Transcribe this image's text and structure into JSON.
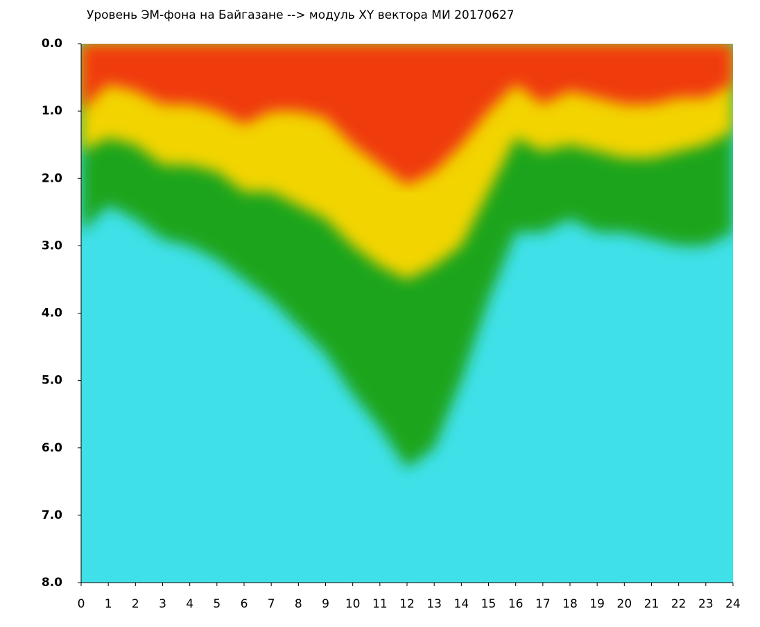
{
  "chart_data": {
    "type": "area",
    "title": "Уровень ЭМ-фона на Байгазане  --> модуль XY вектора МИ  20170627",
    "x": [
      0,
      1,
      2,
      3,
      4,
      5,
      6,
      7,
      8,
      9,
      10,
      11,
      12,
      13,
      14,
      15,
      16,
      17,
      18,
      19,
      20,
      21,
      22,
      23,
      24
    ],
    "series": [
      {
        "color": "#1fa51f",
        "values": [
          2.8,
          2.4,
          2.6,
          2.9,
          3.0,
          3.2,
          3.5,
          3.8,
          4.2,
          4.6,
          5.2,
          5.7,
          6.3,
          6.0,
          5.0,
          3.8,
          2.8,
          2.8,
          2.6,
          2.8,
          2.8,
          2.9,
          3.0,
          3.0,
          2.8
        ]
      },
      {
        "color": "#f2d400",
        "values": [
          1.6,
          1.4,
          1.5,
          1.8,
          1.8,
          1.9,
          2.2,
          2.2,
          2.4,
          2.6,
          3.0,
          3.3,
          3.5,
          3.3,
          3.0,
          2.2,
          1.4,
          1.6,
          1.5,
          1.6,
          1.7,
          1.7,
          1.6,
          1.5,
          1.3
        ]
      },
      {
        "color": "#f03a10",
        "values": [
          1.0,
          0.6,
          0.7,
          0.9,
          0.9,
          1.0,
          1.2,
          1.0,
          1.0,
          1.1,
          1.5,
          1.8,
          2.1,
          1.9,
          1.5,
          1.0,
          0.6,
          0.9,
          0.7,
          0.8,
          0.9,
          0.9,
          0.8,
          0.8,
          0.6
        ]
      }
    ],
    "background_color": "#3fe0e8",
    "xlim": [
      0,
      24
    ],
    "xticks": [
      0,
      1,
      2,
      3,
      4,
      5,
      6,
      7,
      8,
      9,
      10,
      11,
      12,
      13,
      14,
      15,
      16,
      17,
      18,
      19,
      20,
      21,
      22,
      23,
      24
    ],
    "ylim": [
      0,
      8
    ],
    "y_inverted": true,
    "yticks": [
      {
        "value": 0,
        "label": "0.0"
      },
      {
        "value": 1,
        "label": "1.0"
      },
      {
        "value": 2,
        "label": "2.0"
      },
      {
        "value": 3,
        "label": "3.0"
      },
      {
        "value": 4,
        "label": "4.0"
      },
      {
        "value": 5,
        "label": "5.0"
      },
      {
        "value": 6,
        "label": "6.0"
      },
      {
        "value": 7,
        "label": "7.0"
      },
      {
        "value": 8,
        "label": "8.0"
      }
    ]
  }
}
